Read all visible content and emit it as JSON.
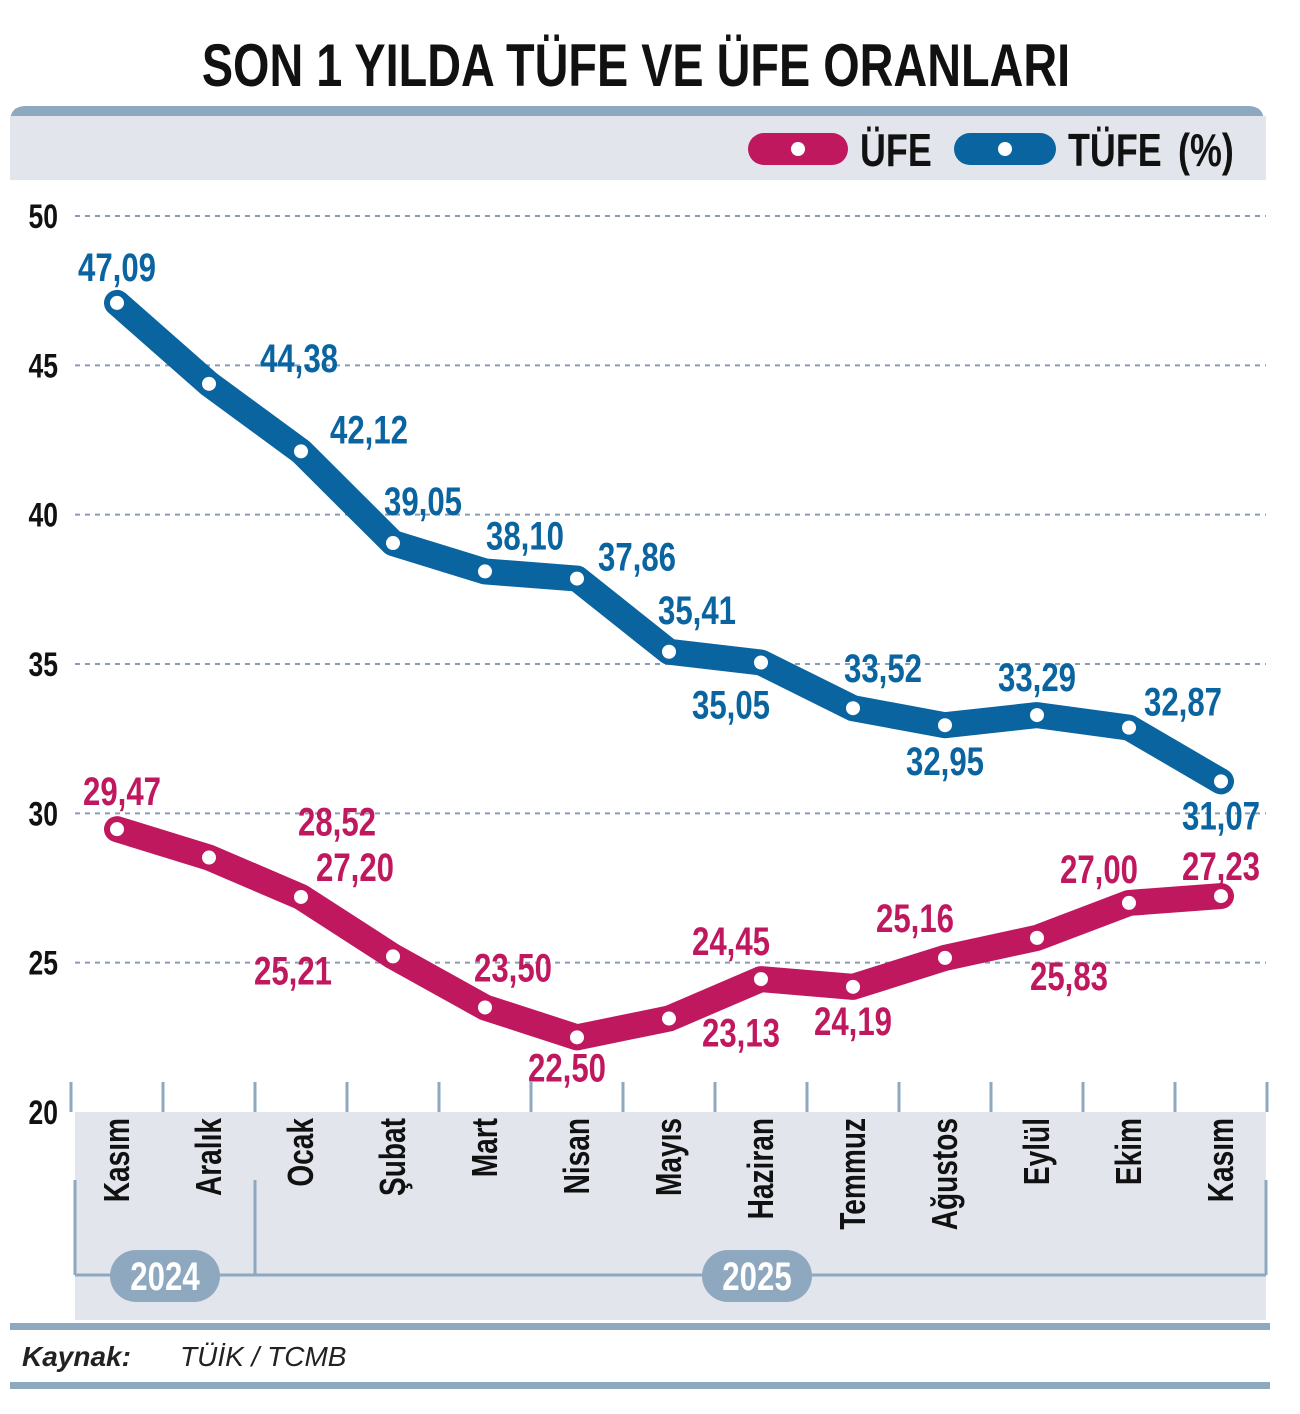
{
  "chart_data": {
    "type": "line",
    "title": "SON 1 YILDA TÜFE VE ÜFE ORANLARI",
    "legend_suffix": "(%)",
    "legend_placement": "top-right",
    "categories": [
      "Kasım",
      "Aralık",
      "Ocak",
      "Şubat",
      "Mart",
      "Nisan",
      "Mayıs",
      "Haziran",
      "Temmuz",
      "Ağustos",
      "Eylül",
      "Ekim",
      "Kasım"
    ],
    "years": [
      {
        "label": "2024",
        "span": [
          0,
          1
        ]
      },
      {
        "label": "2025",
        "span": [
          2,
          12
        ]
      }
    ],
    "ylim": [
      20,
      50
    ],
    "yticks": [
      "20",
      "25",
      "30",
      "35",
      "40",
      "45",
      "50"
    ],
    "grid": true,
    "series": [
      {
        "name": "ÜFE",
        "color": "#c0185f",
        "values": [
          29.47,
          28.52,
          27.2,
          25.21,
          23.5,
          22.5,
          23.13,
          24.45,
          24.19,
          25.16,
          25.83,
          27.0,
          27.23
        ],
        "labels": [
          "29,47",
          "28,52",
          "27,20",
          "25,21",
          "23,50",
          "22,50",
          "23,13",
          "24,45",
          "24,19",
          "25,16",
          "25,83",
          "27,00",
          "27,23"
        ]
      },
      {
        "name": "TÜFE",
        "color": "#0a64a0",
        "values": [
          47.09,
          44.38,
          42.12,
          39.05,
          38.1,
          37.86,
          35.41,
          35.05,
          33.52,
          32.95,
          33.29,
          32.87,
          31.07
        ],
        "labels": [
          "47,09",
          "44,38",
          "42,12",
          "39,05",
          "38,10",
          "37,86",
          "35,41",
          "35,05",
          "33,52",
          "32,95",
          "33,29",
          "32,87",
          "31,07"
        ]
      }
    ]
  },
  "source": {
    "label": "Kaynak:",
    "value": "TÜİK / TCMB"
  }
}
